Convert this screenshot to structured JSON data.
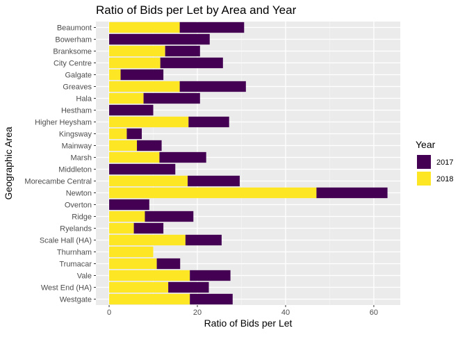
{
  "chart_data": {
    "type": "bar",
    "orientation": "horizontal",
    "stacked": true,
    "title": "Ratio of Bids per Let  by Area and Year",
    "xlabel": "Ratio of Bids per Let",
    "ylabel": "Geographic Area",
    "xlim": [
      -3,
      66
    ],
    "xticks": [
      0,
      20,
      40,
      60
    ],
    "grid": true,
    "legend": {
      "title": "Year",
      "position": "right"
    },
    "categories": [
      "Beaumont",
      "Bowerham",
      "Branksome",
      "City Centre",
      "Galgate",
      "Greaves",
      "Hala",
      "Hestham",
      "Higher Heysham",
      "Kingsway",
      "Mainway",
      "Marsh",
      "Middleton",
      "Morecambe Central",
      "Newton",
      "Overton",
      "Ridge",
      "Ryelands",
      "Scale Hall (HA)",
      "Thurnham",
      "Trumacar",
      "Vale",
      "West End (HA)",
      "Westgate"
    ],
    "series": [
      {
        "name": "2018",
        "color": "#FDE725",
        "values": [
          16,
          0,
          12.7,
          11.6,
          2.6,
          16,
          7.8,
          0,
          18,
          4,
          6.3,
          11.4,
          0,
          17.8,
          47,
          0,
          8.1,
          5.6,
          17.3,
          10,
          10.8,
          18.3,
          13.4,
          18.3
        ]
      },
      {
        "name": "2017",
        "color": "#440154",
        "values": [
          14.6,
          22.8,
          7.9,
          14.2,
          9.7,
          15,
          12.8,
          10,
          9.2,
          3.4,
          5.6,
          10.6,
          15,
          11.8,
          16.1,
          9.1,
          11,
          6.7,
          8.2,
          0,
          5.3,
          9.2,
          9.2,
          9.7
        ]
      }
    ]
  }
}
